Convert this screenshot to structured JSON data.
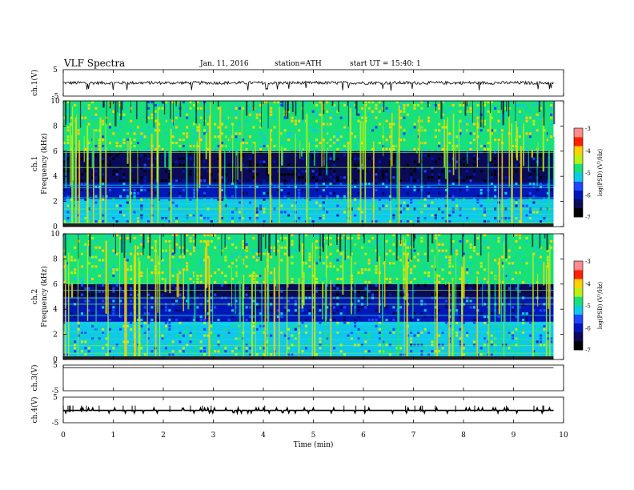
{
  "header": {
    "title": "VLF Spectra",
    "date": "Jan. 11, 2016",
    "station": "station=ATH",
    "start": "start UT = 15:40: 1"
  },
  "colors": {
    "spectrogram_ramp": [
      "#000000",
      "#0a0a58",
      "#0018b8",
      "#1e46ff",
      "#10c8e8",
      "#18e07a",
      "#b8f014",
      "#ffd000",
      "#ff2000",
      "#ff8c8c"
    ],
    "trace": "#000000"
  },
  "chart_data": [
    {
      "type": "line",
      "panel": "ch1-waveform",
      "ylabel": "ch.1(V)",
      "yticks": [
        "5",
        "-5"
      ],
      "ylim": [
        -5,
        5
      ],
      "xlim": [
        0,
        10
      ],
      "xticks": [
        "0",
        "1",
        "2",
        "3",
        "4",
        "5",
        "6",
        "7",
        "8",
        "9",
        "10"
      ],
      "series": [
        {
          "values_summary": "noisy trace around 0 V, amplitude about ±1 V, from t=0 to t≈9.8 min"
        }
      ]
    },
    {
      "type": "heatmap",
      "panel": "ch1-spectrogram",
      "title": "ch.1",
      "ylabel": "Frequency (kHz)",
      "ylim": [
        0,
        10
      ],
      "yticks": [
        "0",
        "2",
        "4",
        "6",
        "8",
        "10"
      ],
      "xlim": [
        0,
        10
      ],
      "data_extent_x": [
        0,
        9.8
      ],
      "colorbar": {
        "label": "log(PSD) (V²/Hz)",
        "range": [
          -7,
          -3
        ],
        "ticks": [
          "-3",
          "-4",
          "-5",
          "-6",
          "-7"
        ]
      },
      "bands": [
        {
          "f_low": 0,
          "f_high": 2.2,
          "logpsd": -5.3
        },
        {
          "f_low": 2.2,
          "f_high": 3.5,
          "logpsd": -5.9
        },
        {
          "f_low": 3.5,
          "f_high": 6.0,
          "logpsd": -6.6
        },
        {
          "f_low": 6.0,
          "f_high": 10,
          "logpsd": -4.8
        }
      ],
      "horizontal_lines_khz": [
        0.3,
        0.6,
        1.0,
        1.4,
        1.8,
        2.3,
        3.1,
        3.3,
        4.7,
        5.9
      ]
    },
    {
      "type": "heatmap",
      "panel": "ch2-spectrogram",
      "title": "ch.2",
      "ylabel": "Frequency (kHz)",
      "ylim": [
        0,
        10
      ],
      "yticks": [
        "0",
        "2",
        "4",
        "6",
        "8",
        "10"
      ],
      "xlim": [
        0,
        10
      ],
      "data_extent_x": [
        0,
        9.8
      ],
      "colorbar": {
        "label": "log(PSD) (V²/Hz)",
        "range": [
          -7,
          -3
        ],
        "ticks": [
          "-3",
          "-4",
          "-5",
          "-6",
          "-7"
        ]
      },
      "bands": [
        {
          "f_low": 0,
          "f_high": 3.0,
          "logpsd": -5.1
        },
        {
          "f_low": 3.0,
          "f_high": 5.0,
          "logpsd": -5.9
        },
        {
          "f_low": 5.0,
          "f_high": 6.0,
          "logpsd": -6.4
        },
        {
          "f_low": 6.0,
          "f_high": 10,
          "logpsd": -4.7
        }
      ],
      "horizontal_lines_khz": [
        0.5,
        1.1,
        1.6,
        2.2,
        2.8,
        3.5,
        4.4,
        4.9,
        5.5
      ]
    },
    {
      "type": "line",
      "panel": "ch3-waveform",
      "ylabel": "ch.3(V)",
      "yticks": [
        "5",
        "-5"
      ],
      "ylim": [
        -5,
        5
      ],
      "xlim": [
        0,
        10
      ],
      "series": [
        {
          "values_summary": "flat trace near +4 V from t=0 to t≈9.8 min"
        }
      ]
    },
    {
      "type": "line",
      "panel": "ch4-waveform",
      "ylabel": "ch.4(V)",
      "yticks": [
        "5",
        "-5"
      ],
      "ylim": [
        -5,
        5
      ],
      "xlim": [
        0,
        10
      ],
      "xlabel": "Time (min)",
      "xticks": [
        "0",
        "1",
        "2",
        "3",
        "4",
        "5",
        "6",
        "7",
        "8",
        "9",
        "10"
      ],
      "series": [
        {
          "values_summary": "flat trace near -0.2 V with dense spikes, t=0 to t≈9.8 min"
        }
      ]
    }
  ]
}
